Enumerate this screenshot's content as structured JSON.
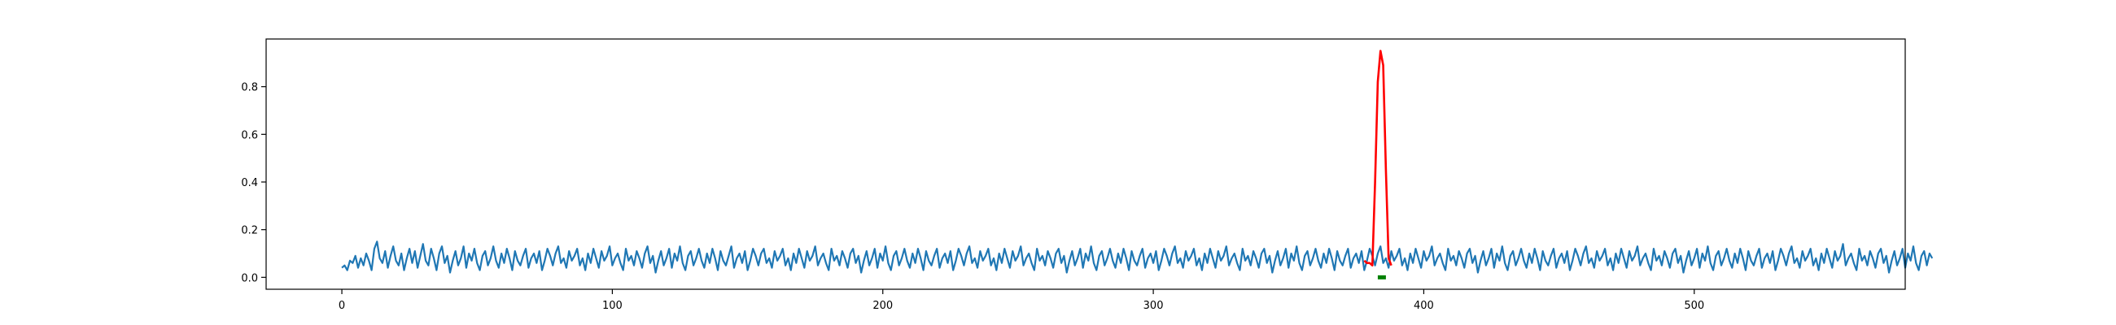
{
  "chart_data": {
    "type": "line",
    "title": "",
    "xlabel": "",
    "ylabel": "",
    "xlim": [
      -28,
      578
    ],
    "ylim": [
      -0.05,
      1.0
    ],
    "grid": false,
    "legend": "none",
    "x_ticks": [
      {
        "value": 0,
        "label": "0"
      },
      {
        "value": 100,
        "label": "100"
      },
      {
        "value": 200,
        "label": "200"
      },
      {
        "value": 300,
        "label": "300"
      },
      {
        "value": 400,
        "label": "400"
      },
      {
        "value": 500,
        "label": "500"
      }
    ],
    "y_ticks": [
      {
        "value": 0.0,
        "label": "0.0"
      },
      {
        "value": 0.2,
        "label": "0.2"
      },
      {
        "value": 0.4,
        "label": "0.4"
      },
      {
        "value": 0.6,
        "label": "0.6"
      },
      {
        "value": 0.8,
        "label": "0.8"
      }
    ],
    "series": [
      {
        "color": "#1f77b4",
        "x_start": 0,
        "values": [
          0.04,
          0.05,
          0.03,
          0.07,
          0.06,
          0.09,
          0.04,
          0.08,
          0.05,
          0.1,
          0.07,
          0.03,
          0.12,
          0.15,
          0.08,
          0.06,
          0.11,
          0.04,
          0.09,
          0.13,
          0.07,
          0.05,
          0.1,
          0.03,
          0.08,
          0.12,
          0.06,
          0.11,
          0.04,
          0.09,
          0.14,
          0.07,
          0.05,
          0.12,
          0.08,
          0.03,
          0.1,
          0.13,
          0.06,
          0.09,
          0.02,
          0.07,
          0.11,
          0.05,
          0.08,
          0.13,
          0.04,
          0.1,
          0.07,
          0.12,
          0.06,
          0.03,
          0.09,
          0.11,
          0.05,
          0.08,
          0.13,
          0.07,
          0.04,
          0.1,
          0.06,
          0.12,
          0.08,
          0.03,
          0.11,
          0.07,
          0.05,
          0.09,
          0.12,
          0.04,
          0.08,
          0.1,
          0.06,
          0.11,
          0.03,
          0.07,
          0.12,
          0.09,
          0.05,
          0.1,
          0.13,
          0.06,
          0.08,
          0.04,
          0.11,
          0.07,
          0.09,
          0.12,
          0.05,
          0.08,
          0.03,
          0.1,
          0.06,
          0.12,
          0.08,
          0.04,
          0.11,
          0.07,
          0.09,
          0.13,
          0.05,
          0.08,
          0.1,
          0.06,
          0.03,
          0.12,
          0.07,
          0.09,
          0.05,
          0.11,
          0.08,
          0.04,
          0.1,
          0.13,
          0.06,
          0.09,
          0.02,
          0.07,
          0.11,
          0.05,
          0.08,
          0.12,
          0.04,
          0.1,
          0.07,
          0.13,
          0.06,
          0.03,
          0.09,
          0.11,
          0.05,
          0.08,
          0.12,
          0.07,
          0.04,
          0.1,
          0.06,
          0.12,
          0.08,
          0.03,
          0.11,
          0.07,
          0.05,
          0.09,
          0.13,
          0.04,
          0.08,
          0.1,
          0.06,
          0.11,
          0.03,
          0.07,
          0.12,
          0.09,
          0.05,
          0.1,
          0.12,
          0.06,
          0.08,
          0.04,
          0.11,
          0.07,
          0.09,
          0.12,
          0.05,
          0.08,
          0.03,
          0.1,
          0.06,
          0.12,
          0.08,
          0.04,
          0.11,
          0.07,
          0.09,
          0.13,
          0.05,
          0.08,
          0.1,
          0.06,
          0.03,
          0.12,
          0.07,
          0.09,
          0.05,
          0.11,
          0.08,
          0.04,
          0.1,
          0.12,
          0.06,
          0.09,
          0.02,
          0.07,
          0.11,
          0.05,
          0.08,
          0.12,
          0.04,
          0.1,
          0.07,
          0.13,
          0.06,
          0.03,
          0.09,
          0.11,
          0.05,
          0.08,
          0.12,
          0.07,
          0.04,
          0.1,
          0.06,
          0.12,
          0.08,
          0.03,
          0.11,
          0.07,
          0.05,
          0.09,
          0.12,
          0.04,
          0.08,
          0.1,
          0.06,
          0.11,
          0.03,
          0.07,
          0.12,
          0.09,
          0.05,
          0.1,
          0.13,
          0.06,
          0.08,
          0.04,
          0.11,
          0.07,
          0.09,
          0.12,
          0.05,
          0.08,
          0.03,
          0.1,
          0.06,
          0.12,
          0.08,
          0.04,
          0.11,
          0.07,
          0.09,
          0.13,
          0.05,
          0.08,
          0.1,
          0.06,
          0.03,
          0.12,
          0.07,
          0.09,
          0.05,
          0.11,
          0.08,
          0.04,
          0.1,
          0.12,
          0.06,
          0.09,
          0.02,
          0.07,
          0.11,
          0.05,
          0.08,
          0.12,
          0.04,
          0.1,
          0.07,
          0.13,
          0.06,
          0.03,
          0.09,
          0.11,
          0.05,
          0.08,
          0.12,
          0.07,
          0.04,
          0.1,
          0.06,
          0.12,
          0.08,
          0.03,
          0.11,
          0.07,
          0.05,
          0.09,
          0.12,
          0.04,
          0.08,
          0.1,
          0.06,
          0.11,
          0.03,
          0.07,
          0.12,
          0.09,
          0.05,
          0.1,
          0.13,
          0.06,
          0.08,
          0.04,
          0.11,
          0.07,
          0.09,
          0.12,
          0.05,
          0.08,
          0.03,
          0.1,
          0.06,
          0.12,
          0.08,
          0.04,
          0.11,
          0.07,
          0.09,
          0.13,
          0.05,
          0.08,
          0.1,
          0.06,
          0.03,
          0.12,
          0.07,
          0.09,
          0.05,
          0.11,
          0.08,
          0.04,
          0.1,
          0.12,
          0.06,
          0.09,
          0.02,
          0.07,
          0.11,
          0.05,
          0.08,
          0.12,
          0.04,
          0.1,
          0.07,
          0.13,
          0.06,
          0.03,
          0.09,
          0.11,
          0.05,
          0.08,
          0.12,
          0.07,
          0.04,
          0.1,
          0.06,
          0.12,
          0.08,
          0.03,
          0.11,
          0.07,
          0.05,
          0.09,
          0.12,
          0.04,
          0.08,
          0.1,
          0.06,
          0.11,
          0.03,
          0.07,
          0.12,
          0.09,
          0.05,
          0.1,
          0.13,
          0.06,
          0.08,
          0.04,
          0.11,
          0.07,
          0.09,
          0.12,
          0.05,
          0.08,
          0.03,
          0.1,
          0.06,
          0.12,
          0.08,
          0.04,
          0.11,
          0.07,
          0.09,
          0.13,
          0.05,
          0.08,
          0.1,
          0.06,
          0.03,
          0.12,
          0.07,
          0.09,
          0.05,
          0.11,
          0.08,
          0.04,
          0.1,
          0.12,
          0.06,
          0.09,
          0.02,
          0.07,
          0.11,
          0.05,
          0.08,
          0.12,
          0.04,
          0.1,
          0.07,
          0.13,
          0.06,
          0.03,
          0.09,
          0.11,
          0.05,
          0.08,
          0.12,
          0.07,
          0.04,
          0.1,
          0.06,
          0.12,
          0.08,
          0.03,
          0.11,
          0.07,
          0.05,
          0.09,
          0.12,
          0.04,
          0.08,
          0.1,
          0.06,
          0.11,
          0.03,
          0.07,
          0.12,
          0.09,
          0.05,
          0.1,
          0.13,
          0.06,
          0.08,
          0.04,
          0.11,
          0.07,
          0.09,
          0.12,
          0.05,
          0.08,
          0.03,
          0.1,
          0.06,
          0.12,
          0.08,
          0.04,
          0.11,
          0.07,
          0.09,
          0.13,
          0.05,
          0.08,
          0.1,
          0.06,
          0.03,
          0.12,
          0.07,
          0.09,
          0.05,
          0.11,
          0.08,
          0.04,
          0.1,
          0.12,
          0.06,
          0.09,
          0.02,
          0.07,
          0.11,
          0.05,
          0.08,
          0.12,
          0.04,
          0.1,
          0.07,
          0.13,
          0.06,
          0.03,
          0.09,
          0.11,
          0.05,
          0.08,
          0.12,
          0.07,
          0.04,
          0.1,
          0.06,
          0.12,
          0.08,
          0.03,
          0.11,
          0.07,
          0.05,
          0.09,
          0.12,
          0.04,
          0.08,
          0.1,
          0.06,
          0.11,
          0.03,
          0.07,
          0.12,
          0.09,
          0.05,
          0.1,
          0.13,
          0.06,
          0.08,
          0.04,
          0.11,
          0.07,
          0.09,
          0.12,
          0.05,
          0.08,
          0.03,
          0.1,
          0.06,
          0.12,
          0.08,
          0.04,
          0.11,
          0.07,
          0.09,
          0.14,
          0.05,
          0.08,
          0.1,
          0.06,
          0.03,
          0.12,
          0.07,
          0.09,
          0.05,
          0.11,
          0.08,
          0.04,
          0.1,
          0.12,
          0.06,
          0.09,
          0.02,
          0.07,
          0.11,
          0.05,
          0.08,
          0.12,
          0.04,
          0.1,
          0.07,
          0.13,
          0.06,
          0.03,
          0.09,
          0.11,
          0.05,
          0.1,
          0.08
        ]
      },
      {
        "color": "#ff0000",
        "x": [
          378,
          379,
          380,
          381,
          382,
          383,
          384,
          385,
          386,
          387,
          388
        ],
        "values": [
          0.07,
          0.06,
          0.06,
          0.05,
          0.4,
          0.82,
          0.95,
          0.89,
          0.45,
          0.08,
          0.05
        ]
      },
      {
        "color": "#008000",
        "x": [
          383,
          384,
          385,
          386
        ],
        "values": [
          0.0,
          0.0,
          0.0,
          0.0
        ]
      }
    ]
  }
}
